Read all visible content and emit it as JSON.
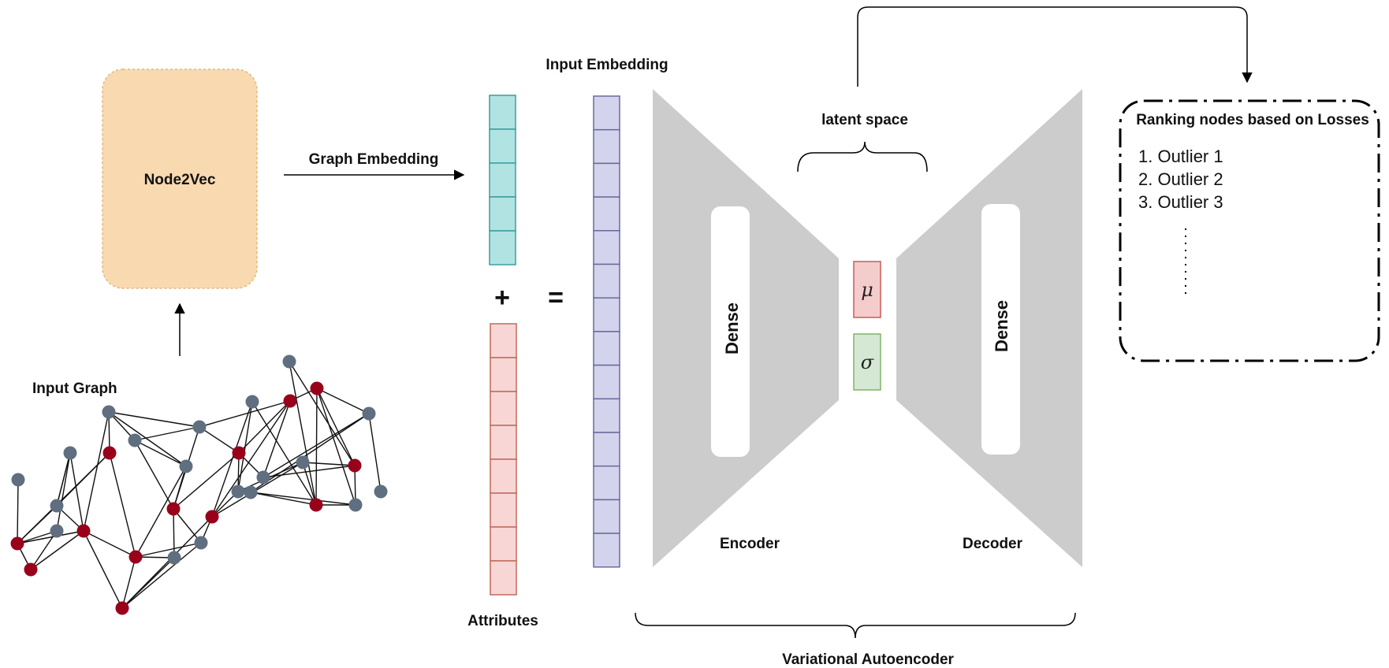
{
  "labels": {
    "node2vec": "Node2Vec",
    "input_graph": "Input Graph",
    "graph_embedding": "Graph Embedding",
    "input_embedding": "Input Embedding",
    "attributes": "Attributes",
    "plus": "+",
    "equals": "=",
    "latent_space": "latent space",
    "mu": "μ",
    "sigma": "σ",
    "encoder_dense": "Dense",
    "decoder_dense": "Dense",
    "encoder": "Encoder",
    "decoder": "Decoder",
    "vae": "Variational Autoencoder"
  },
  "ranking": {
    "title": "Ranking nodes based on Losses",
    "items": [
      "1. Outlier 1",
      "2. Outlier 2",
      "3. Outlier 3"
    ]
  },
  "colors": {
    "node2vec_fill": "#f9d9b0",
    "node2vec_border": "#e0b87a",
    "graph_embedding_fill": "#b1e3e3",
    "graph_embedding_border": "#3a9ea0",
    "attributes_fill": "#f8d6d6",
    "attributes_border": "#c06a5c",
    "input_embedding_fill": "#d3d3ec",
    "input_embedding_border": "#6a6a9e",
    "trapezoid_fill": "#cccccc",
    "mu_fill": "#f5cccc",
    "mu_border": "#c95b5b",
    "sigma_fill": "#d5e8d4",
    "sigma_border": "#82b366",
    "outlier_node": "#99001a",
    "normal_node": "#5f6f80"
  },
  "graph": {
    "nodes": [
      {
        "id": 0,
        "type": "normal"
      },
      {
        "id": 1,
        "type": "outlier"
      },
      {
        "id": 2,
        "type": "outlier"
      },
      {
        "id": 3,
        "type": "normal"
      },
      {
        "id": 4,
        "type": "normal"
      },
      {
        "id": 5,
        "type": "normal"
      },
      {
        "id": 6,
        "type": "normal"
      },
      {
        "id": 7,
        "type": "outlier"
      },
      {
        "id": 8,
        "type": "outlier"
      },
      {
        "id": 9,
        "type": "normal"
      },
      {
        "id": 10,
        "type": "normal"
      },
      {
        "id": 11,
        "type": "outlier"
      },
      {
        "id": 12,
        "type": "outlier"
      },
      {
        "id": 13,
        "type": "outlier"
      },
      {
        "id": 14,
        "type": "normal"
      },
      {
        "id": 15,
        "type": "normal"
      },
      {
        "id": 16,
        "type": "normal"
      },
      {
        "id": 17,
        "type": "outlier"
      },
      {
        "id": 18,
        "type": "outlier"
      },
      {
        "id": 19,
        "type": "outlier"
      },
      {
        "id": 20,
        "type": "normal"
      },
      {
        "id": 21,
        "type": "normal"
      },
      {
        "id": 22,
        "type": "normal"
      },
      {
        "id": 23,
        "type": "normal"
      },
      {
        "id": 24,
        "type": "outlier"
      },
      {
        "id": 25,
        "type": "normal"
      },
      {
        "id": 26,
        "type": "outlier"
      },
      {
        "id": 27,
        "type": "outlier"
      },
      {
        "id": 28,
        "type": "normal"
      },
      {
        "id": 29,
        "type": "normal"
      },
      {
        "id": 30,
        "type": "normal"
      },
      {
        "id": 31,
        "type": "normal"
      }
    ],
    "edges": [
      [
        0,
        1
      ],
      [
        1,
        2
      ],
      [
        2,
        3
      ],
      [
        1,
        3
      ],
      [
        1,
        4
      ],
      [
        4,
        5
      ],
      [
        5,
        8
      ],
      [
        4,
        7
      ],
      [
        1,
        7
      ],
      [
        1,
        8
      ],
      [
        2,
        8
      ],
      [
        8,
        12
      ],
      [
        7,
        12
      ],
      [
        12,
        13
      ],
      [
        8,
        13
      ],
      [
        13,
        15
      ],
      [
        12,
        15
      ],
      [
        15,
        11
      ],
      [
        11,
        16
      ],
      [
        16,
        13
      ],
      [
        16,
        17
      ],
      [
        13,
        17
      ],
      [
        7,
        6
      ],
      [
        6,
        10
      ],
      [
        10,
        11
      ],
      [
        10,
        9
      ],
      [
        11,
        9
      ],
      [
        9,
        14
      ],
      [
        14,
        18
      ],
      [
        18,
        19
      ],
      [
        19,
        24
      ],
      [
        24,
        26
      ],
      [
        26,
        21
      ],
      [
        21,
        29
      ],
      [
        29,
        31
      ],
      [
        21,
        28
      ],
      [
        28,
        24
      ],
      [
        24,
        27
      ],
      [
        27,
        23
      ],
      [
        23,
        19
      ],
      [
        19,
        17
      ],
      [
        17,
        22
      ],
      [
        22,
        20
      ],
      [
        22,
        18
      ],
      [
        20,
        26
      ],
      [
        26,
        25
      ],
      [
        25,
        27
      ],
      [
        27,
        30
      ],
      [
        27,
        28
      ],
      [
        6,
        14
      ],
      [
        14,
        19
      ],
      [
        10,
        12
      ],
      [
        6,
        9
      ],
      [
        18,
        23
      ],
      [
        24,
        29
      ],
      [
        26,
        28
      ],
      [
        23,
        29
      ],
      [
        18,
        11
      ],
      [
        3,
        5
      ],
      [
        5,
        4
      ],
      [
        4,
        8
      ],
      [
        6,
        8
      ],
      [
        12,
        16
      ],
      [
        17,
        25
      ],
      [
        17,
        20
      ],
      [
        11,
        14
      ],
      [
        30,
        26
      ],
      [
        22,
        25
      ]
    ]
  }
}
